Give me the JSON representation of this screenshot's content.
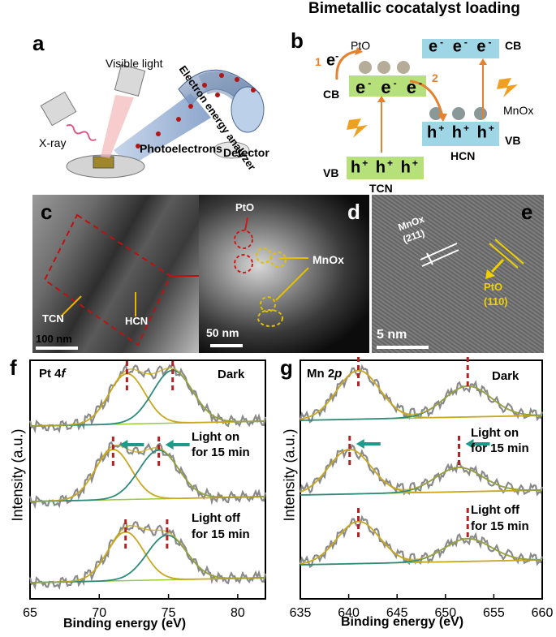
{
  "top_title": "Bimetallic cocatalyst loading",
  "panels": {
    "a": {
      "label": "a",
      "visible_light": "Visible light",
      "xray": "X-ray",
      "analyzer": "Electron energy analyzer",
      "photoelectrons": "Photoelectrons",
      "detector": "Detector"
    },
    "b": {
      "label": "b",
      "pto": "PtO",
      "mnox": "MnOx",
      "cb_left": "CB",
      "vb_left": "VB",
      "cb_right": "CB",
      "vb_right": "VB",
      "tcn": "TCN",
      "hcn": "HCN",
      "e": "e",
      "minus": "-",
      "h": "h",
      "plus": "+",
      "step1": "1",
      "step2": "2"
    },
    "c": {
      "label": "c",
      "tcn": "TCN",
      "hcn": "HCN",
      "scale": "100 nm"
    },
    "d": {
      "label": "d",
      "pto": "PtO",
      "mnox": "MnOx",
      "scale": "50 nm"
    },
    "e": {
      "label": "e",
      "mnox": "MnOx",
      "mnox_plane": "(211)",
      "pto": "PtO",
      "pto_plane": "(110)",
      "scale": "5 nm"
    },
    "f": {
      "label": "f",
      "element": "Pt 4",
      "orbital": "f",
      "dark": "Dark",
      "light_on_1": "Light on",
      "light_on_2": "for 15 min",
      "light_off_1": "Light off",
      "light_off_2": "for 15 min",
      "ylabel": "Intensity (a.u.)",
      "xlabel": "Binding energy (eV)"
    },
    "g": {
      "label": "g",
      "element": "Mn 2",
      "orbital": "p",
      "dark": "Dark",
      "light_on_1": "Light on",
      "light_on_2": "for 15 min",
      "light_off_1": "Light off",
      "light_off_2": "for 15 min",
      "ylabel": "Intensity (a.u.)",
      "xlabel": "Binding energy (eV)"
    }
  },
  "colors": {
    "accent_green": "#1f9a8a",
    "gold": "#c8a820",
    "teal": "#2e8b7a",
    "red_dash": "#b22222",
    "orange_arrow": "#e5822f"
  },
  "chart_data": [
    {
      "type": "line",
      "id": "f",
      "title": "Pt 4f",
      "xlabel": "Binding energy (eV)",
      "ylabel": "Intensity (a.u.)",
      "xlim": [
        65,
        82
      ],
      "xticks": [
        "65",
        "70",
        "75",
        "80"
      ],
      "series": [
        {
          "name": "Dark",
          "peaks": [
            72.0,
            75.3
          ]
        },
        {
          "name": "Light on for 15 min",
          "peaks": [
            71.0,
            74.3
          ]
        },
        {
          "name": "Light off for 15 min",
          "peaks": [
            71.9,
            74.9
          ]
        }
      ]
    },
    {
      "type": "line",
      "id": "g",
      "title": "Mn 2p",
      "xlabel": "Binding energy (eV)",
      "ylabel": "Intensity (a.u.)",
      "xlim": [
        635,
        660
      ],
      "xticks": [
        "635",
        "640",
        "645",
        "650",
        "655",
        "660"
      ],
      "series": [
        {
          "name": "Dark",
          "peaks": [
            641.0,
            652.3
          ]
        },
        {
          "name": "Light on for 15 min",
          "peaks": [
            640.1,
            651.4
          ]
        },
        {
          "name": "Light off for 15 min",
          "peaks": [
            641.0,
            652.3
          ]
        }
      ]
    }
  ]
}
